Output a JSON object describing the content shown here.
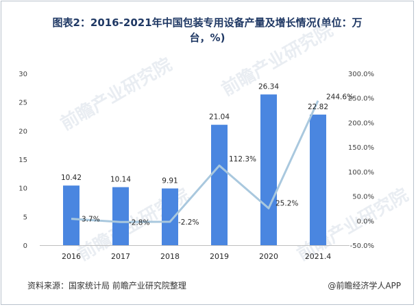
{
  "title_line1": "图表2：2016-2021年中国包装专用设备产量及增长情况(单位：万",
  "title_line2": "台，%)",
  "footer_source": "资料来源：国家统计局 前瞻产业研究院整理",
  "footer_brand": "@前瞻经济学人APP",
  "watermark": "前瞻产业研究院",
  "colors": {
    "bar": "#4a86e0",
    "line": "#a9c8de",
    "title": "#1f3864"
  },
  "chart_data": {
    "type": "bar",
    "categories": [
      "2016",
      "2017",
      "2018",
      "2019",
      "2020",
      "2021.4"
    ],
    "series": [
      {
        "type": "bar",
        "axis": "left",
        "values": [
          10.42,
          10.14,
          9.91,
          21.04,
          26.34,
          22.82
        ]
      },
      {
        "type": "line",
        "axis": "right",
        "values": [
          3.7,
          -2.8,
          -2.2,
          112.3,
          25.2,
          244.6
        ]
      }
    ],
    "bar_labels": [
      "10.42",
      "10.14",
      "9.91",
      "21.04",
      "26.34",
      "22.82"
    ],
    "line_labels": [
      "3.7%",
      "-2.8%",
      "-2.2%",
      "112.3%",
      "25.2%",
      "244.6%"
    ],
    "ylim_left": [
      0,
      30
    ],
    "yticks_left": [
      "0",
      "5",
      "10",
      "15",
      "20",
      "25",
      "30"
    ],
    "ylim_right": [
      -50,
      300
    ],
    "yticks_right": [
      "-50.0%",
      "0.0%",
      "50.0%",
      "100.0%",
      "150.0%",
      "200.0%",
      "250.0%",
      "300.0%"
    ],
    "grid": false,
    "legend": "none"
  }
}
